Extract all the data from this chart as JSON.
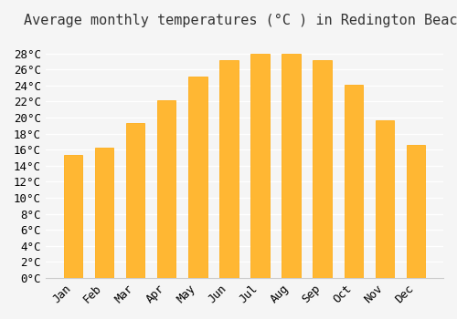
{
  "months": [
    "Jan",
    "Feb",
    "Mar",
    "Apr",
    "May",
    "Jun",
    "Jul",
    "Aug",
    "Sep",
    "Oct",
    "Nov",
    "Dec"
  ],
  "values": [
    15.3,
    16.2,
    19.3,
    22.2,
    25.1,
    27.2,
    28.0,
    28.0,
    27.2,
    24.1,
    19.6,
    16.6
  ],
  "bar_color": "#FFA500",
  "bar_edge_color": "#FF8C00",
  "title": "Average monthly temperatures (°C ) in Redington Beach",
  "ylabel": "",
  "xlabel": "",
  "ylim": [
    0,
    30
  ],
  "yticks": [
    0,
    2,
    4,
    6,
    8,
    10,
    12,
    14,
    16,
    18,
    20,
    22,
    24,
    26,
    28
  ],
  "background_color": "#f5f5f5",
  "grid_color": "#ffffff",
  "title_fontsize": 11,
  "tick_fontsize": 9,
  "bar_alpha": 1.0
}
